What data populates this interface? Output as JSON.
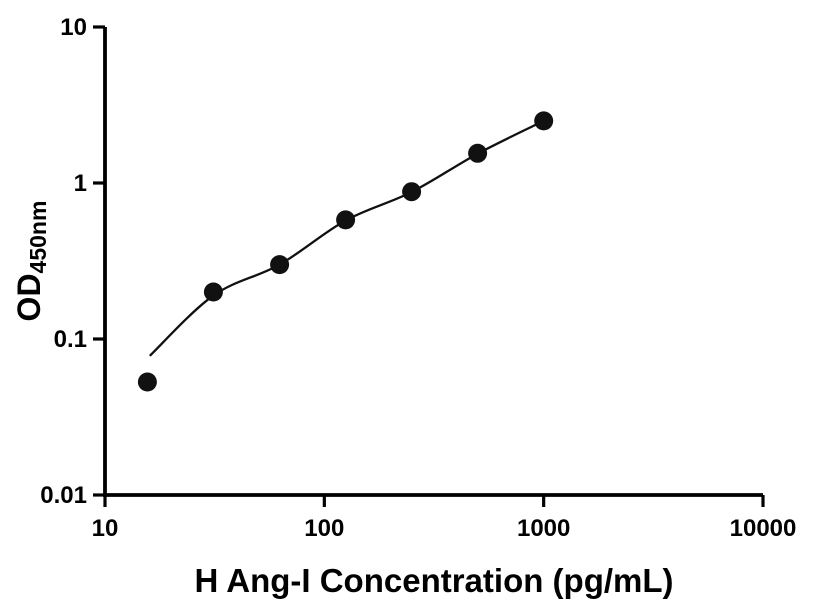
{
  "chart_data": {
    "type": "scatter",
    "title": "",
    "xlabel": "H Ang-I Concentration (pg/mL)",
    "ylabel_main": "OD",
    "ylabel_sub": "450nm",
    "x_scale": "log",
    "y_scale": "log",
    "xlim": [
      10,
      10000
    ],
    "ylim": [
      0.01,
      10
    ],
    "x_ticks": [
      10,
      100,
      1000,
      10000
    ],
    "x_tick_labels": [
      "10",
      "100",
      "1000",
      "10000"
    ],
    "y_ticks": [
      0.01,
      0.1,
      1,
      10
    ],
    "y_tick_labels": [
      "0.01",
      "0.1",
      "1",
      "10"
    ],
    "grid": false,
    "legend": "none",
    "axis_color": "#000000",
    "marker_color": "#111111",
    "curve_color": "#111111",
    "points": [
      {
        "x": 15.6,
        "y": 0.053
      },
      {
        "x": 31.2,
        "y": 0.2
      },
      {
        "x": 62.5,
        "y": 0.3
      },
      {
        "x": 125,
        "y": 0.58
      },
      {
        "x": 250,
        "y": 0.88
      },
      {
        "x": 500,
        "y": 1.55
      },
      {
        "x": 1000,
        "y": 2.5
      }
    ],
    "fit_curve": [
      {
        "x": 16,
        "y": 0.078
      },
      {
        "x": 31.2,
        "y": 0.19
      },
      {
        "x": 62.5,
        "y": 0.3
      },
      {
        "x": 125,
        "y": 0.575
      },
      {
        "x": 250,
        "y": 0.875
      },
      {
        "x": 500,
        "y": 1.54
      },
      {
        "x": 1000,
        "y": 2.5
      }
    ]
  }
}
